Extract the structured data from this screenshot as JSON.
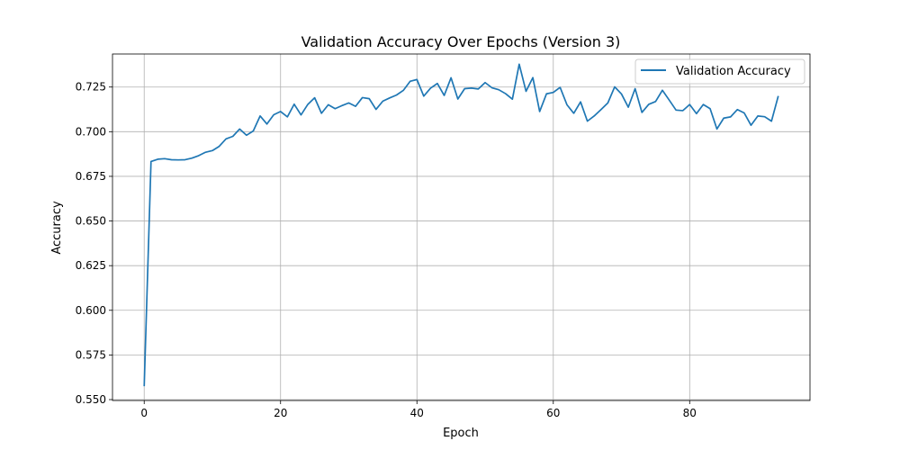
{
  "chart_data": {
    "type": "line",
    "title": "Validation Accuracy Over Epochs (Version 3)",
    "xlabel": "Epoch",
    "ylabel": "Accuracy",
    "xlim": [
      -4.65,
      97.65
    ],
    "ylim": [
      0.5495,
      0.7435
    ],
    "x_ticks": [
      0,
      20,
      40,
      60,
      80
    ],
    "y_ticks": [
      0.55,
      0.575,
      0.6,
      0.625,
      0.65,
      0.675,
      0.7,
      0.725
    ],
    "x_tick_labels": [
      "0",
      "20",
      "40",
      "60",
      "80"
    ],
    "y_tick_labels": [
      "0.550",
      "0.575",
      "0.600",
      "0.625",
      "0.650",
      "0.675",
      "0.700",
      "0.725"
    ],
    "grid": true,
    "legend_position": "top-right",
    "series": [
      {
        "name": "Validation Accuracy",
        "color": "#1f77b4",
        "x": [
          0,
          1,
          2,
          3,
          4,
          5,
          6,
          7,
          8,
          9,
          10,
          11,
          12,
          13,
          14,
          15,
          16,
          17,
          18,
          19,
          20,
          21,
          22,
          23,
          24,
          25,
          26,
          27,
          28,
          29,
          30,
          31,
          32,
          33,
          34,
          35,
          36,
          37,
          38,
          39,
          40,
          41,
          42,
          43,
          44,
          45,
          46,
          47,
          48,
          49,
          50,
          51,
          52,
          53,
          54,
          55,
          56,
          57,
          58,
          59,
          60,
          61,
          62,
          63,
          64,
          65,
          66,
          67,
          68,
          69,
          70,
          71,
          72,
          73,
          74,
          75,
          76,
          77,
          78,
          79,
          80,
          81,
          82,
          83,
          84,
          85,
          86,
          87,
          88,
          89,
          90,
          91,
          92,
          93
        ],
        "values": [
          0.5575,
          0.6833,
          0.6846,
          0.6849,
          0.6843,
          0.6842,
          0.6843,
          0.6852,
          0.6866,
          0.6885,
          0.6894,
          0.6918,
          0.696,
          0.6974,
          0.7015,
          0.698,
          0.7004,
          0.7088,
          0.7043,
          0.7095,
          0.7113,
          0.7083,
          0.7154,
          0.7094,
          0.7153,
          0.719,
          0.7103,
          0.7151,
          0.7129,
          0.7146,
          0.7161,
          0.7142,
          0.7191,
          0.7185,
          0.7125,
          0.7171,
          0.7189,
          0.7205,
          0.7231,
          0.7282,
          0.7292,
          0.7199,
          0.7244,
          0.727,
          0.7203,
          0.7302,
          0.7183,
          0.7241,
          0.7244,
          0.7239,
          0.7275,
          0.7246,
          0.7235,
          0.7213,
          0.7182,
          0.7378,
          0.7226,
          0.7303,
          0.7113,
          0.7212,
          0.722,
          0.7248,
          0.7151,
          0.7103,
          0.7167,
          0.7059,
          0.7088,
          0.7124,
          0.7161,
          0.7251,
          0.7211,
          0.7137,
          0.7241,
          0.7108,
          0.7153,
          0.7169,
          0.7232,
          0.7177,
          0.7121,
          0.7118,
          0.7152,
          0.7101,
          0.7152,
          0.7129,
          0.7015,
          0.7076,
          0.7083,
          0.7124,
          0.7105,
          0.7036,
          0.7088,
          0.7084,
          0.7059,
          0.72
        ]
      }
    ]
  }
}
